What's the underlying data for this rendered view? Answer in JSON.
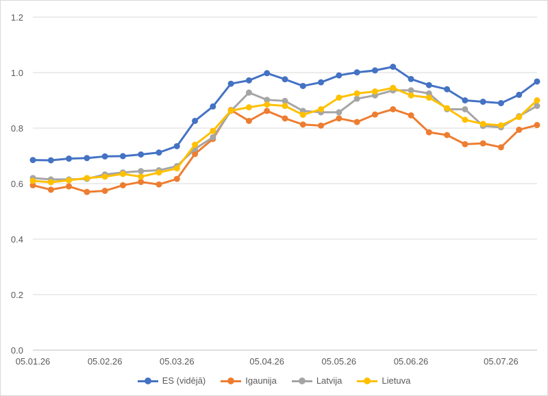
{
  "chart_data": {
    "type": "line",
    "ylim": [
      0,
      1.2
    ],
    "yticks": [
      "0.0",
      "0.2",
      "0.4",
      "0.6",
      "0.8",
      "1.0",
      "1.2"
    ],
    "x_tick_labels": [
      "05.01.26",
      "05.02.26",
      "05.03.26",
      "05.04.26",
      "05.05.26",
      "05.06.26",
      "05.07.26"
    ],
    "x_count": 29,
    "x_tick_indices": [
      0,
      4,
      8,
      13,
      17,
      21,
      26
    ],
    "grid": true,
    "legend_position": "bottom",
    "series": [
      {
        "name": "ES (vidējā)",
        "color": "#4472c4",
        "values": [
          0.685,
          0.684,
          0.69,
          0.692,
          0.698,
          0.699,
          0.705,
          0.712,
          0.735,
          0.826,
          0.878,
          0.96,
          0.972,
          0.998,
          0.976,
          0.952,
          0.965,
          0.99,
          1.001,
          1.008,
          1.021,
          0.977,
          0.955,
          0.94,
          0.9,
          0.895,
          0.89,
          0.92,
          0.968
        ]
      },
      {
        "name": "Igaunija",
        "color": "#ed7d31",
        "values": [
          0.594,
          0.578,
          0.59,
          0.57,
          0.574,
          0.594,
          0.606,
          0.597,
          0.617,
          0.707,
          0.761,
          0.865,
          0.826,
          0.862,
          0.835,
          0.813,
          0.809,
          0.835,
          0.822,
          0.849,
          0.868,
          0.846,
          0.785,
          0.775,
          0.742,
          0.745,
          0.731,
          0.794,
          0.811
        ]
      },
      {
        "name": "Latvija",
        "color": "#a5a5a5",
        "values": [
          0.62,
          0.615,
          0.615,
          0.617,
          0.633,
          0.64,
          0.645,
          0.648,
          0.663,
          0.725,
          0.767,
          0.862,
          0.928,
          0.902,
          0.898,
          0.862,
          0.857,
          0.857,
          0.906,
          0.918,
          0.936,
          0.936,
          0.925,
          0.868,
          0.868,
          0.808,
          0.803,
          0.843,
          0.88
        ]
      },
      {
        "name": "Lietuva",
        "color": "#ffc000",
        "values": [
          0.61,
          0.605,
          0.612,
          0.62,
          0.625,
          0.635,
          0.625,
          0.64,
          0.655,
          0.74,
          0.79,
          0.863,
          0.875,
          0.885,
          0.88,
          0.848,
          0.868,
          0.91,
          0.925,
          0.932,
          0.945,
          0.918,
          0.91,
          0.872,
          0.83,
          0.815,
          0.81,
          0.84,
          0.9
        ]
      }
    ]
  }
}
